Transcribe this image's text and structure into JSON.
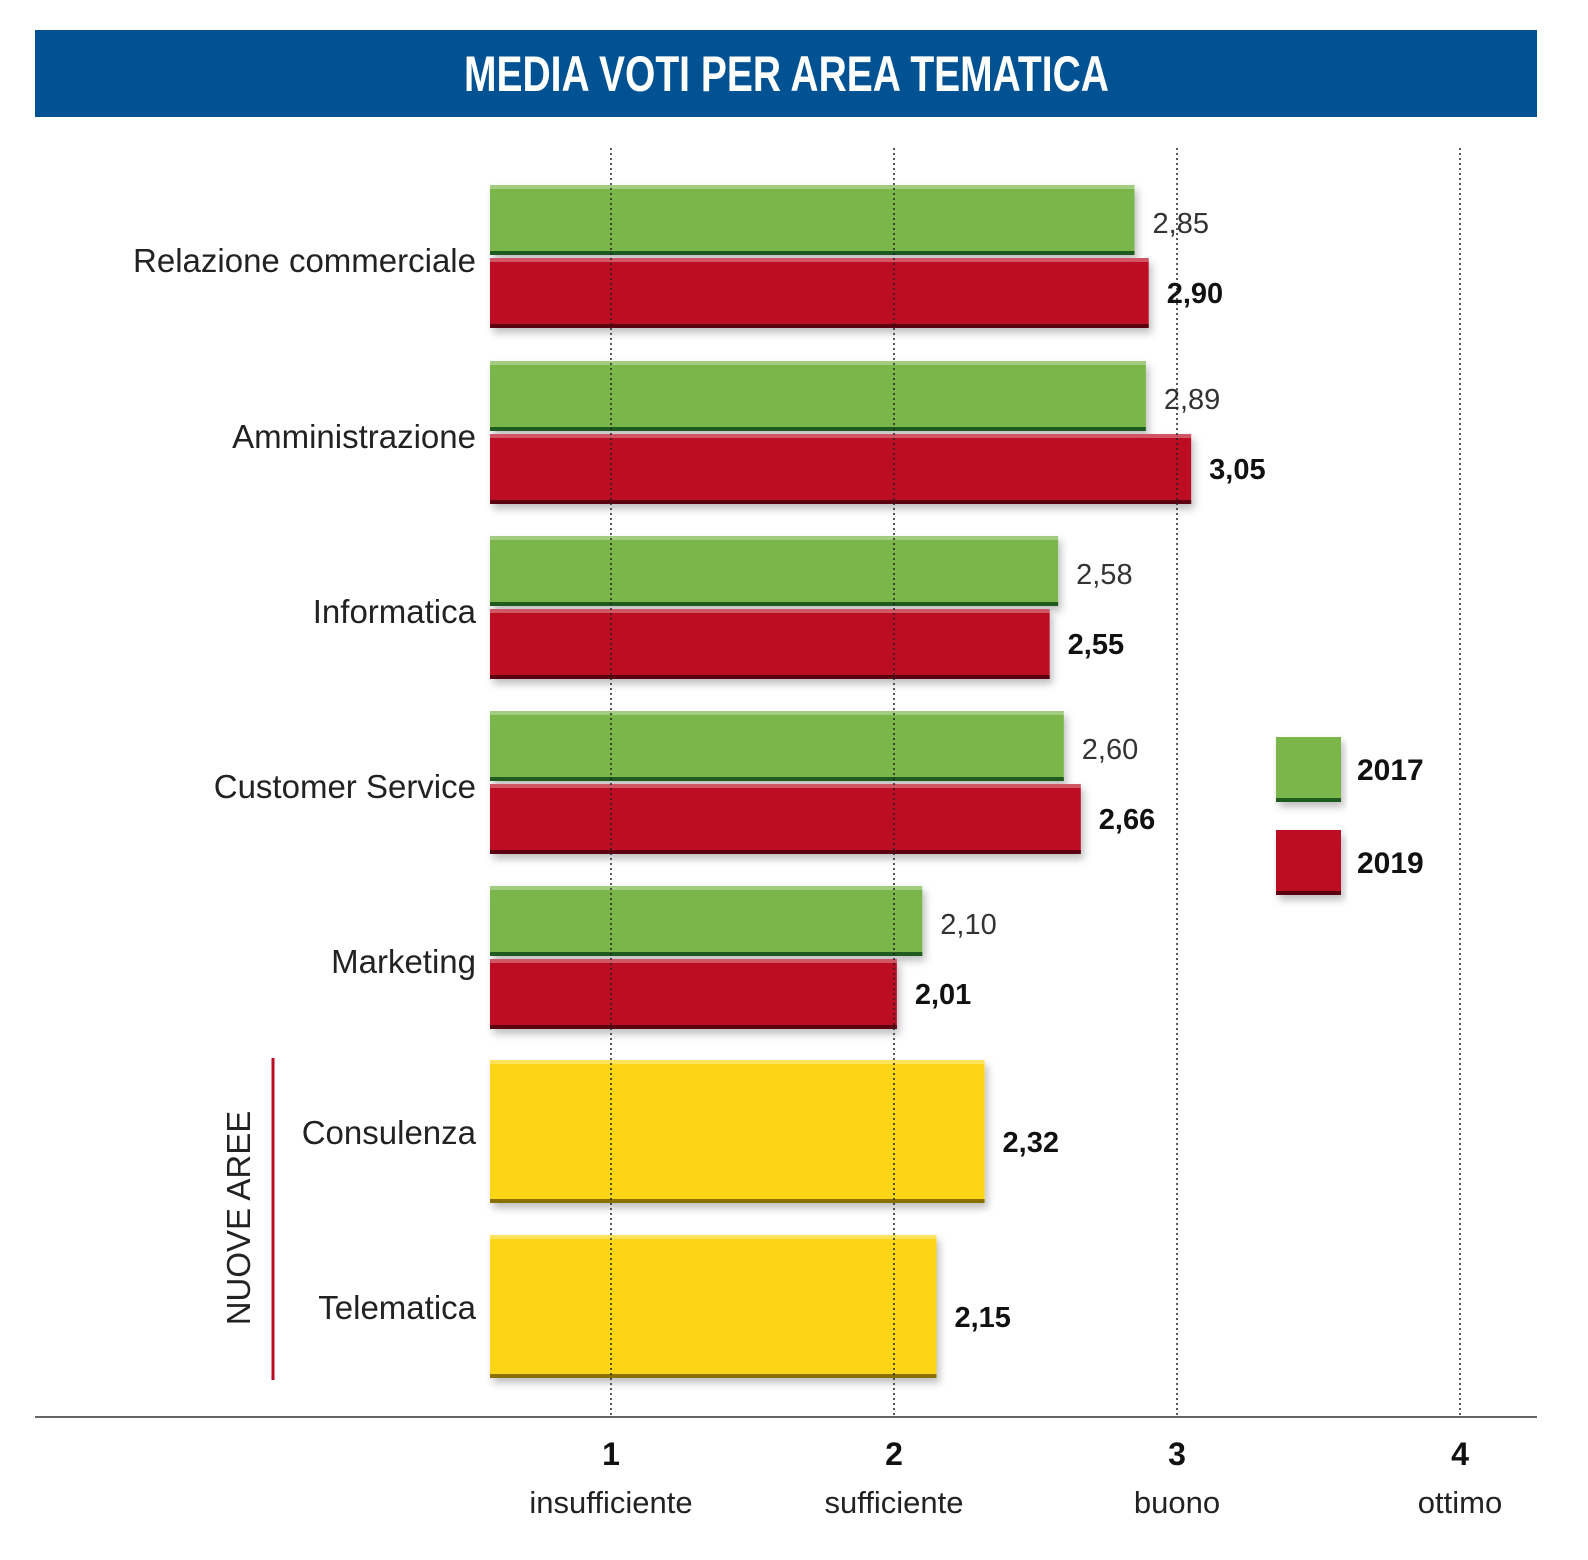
{
  "chart_data": {
    "type": "bar",
    "orientation": "horizontal",
    "title": "MEDIA VOTI PER AREA TEMATICA",
    "categories": [
      "Relazione commerciale",
      "Amministrazione",
      "Informatica",
      "Customer Service",
      "Marketing",
      "Consulenza",
      "Telematica"
    ],
    "series": [
      {
        "name": "2017",
        "color": "#7ab648",
        "values": [
          2.85,
          2.89,
          2.58,
          2.6,
          2.1,
          null,
          null
        ],
        "labels": [
          "2,85",
          "2,89",
          "2,58",
          "2,60",
          "2,10",
          null,
          null
        ]
      },
      {
        "name": "2019",
        "color": "#bd0a24",
        "values": [
          2.9,
          3.05,
          2.55,
          2.66,
          2.01,
          null,
          null
        ],
        "labels": [
          "2,90",
          "3,05",
          "2,55",
          "2,66",
          "2,01",
          null,
          null
        ]
      },
      {
        "name": "Nuove aree",
        "color": "#fcd612",
        "values": [
          null,
          null,
          null,
          null,
          null,
          2.32,
          2.15
        ],
        "labels": [
          null,
          null,
          null,
          null,
          null,
          "2,32",
          "2,15"
        ]
      }
    ],
    "group_label": "NUOVE AREE",
    "xticks": [
      1,
      2,
      3,
      4
    ],
    "xtick_labels": [
      "insufficiente",
      "sufficiente",
      "buono",
      "ottimo"
    ],
    "xlim": [
      0.57,
      4.25
    ],
    "grid": true,
    "legend": {
      "placement": "right",
      "entries": [
        "2017",
        "2019"
      ]
    }
  }
}
